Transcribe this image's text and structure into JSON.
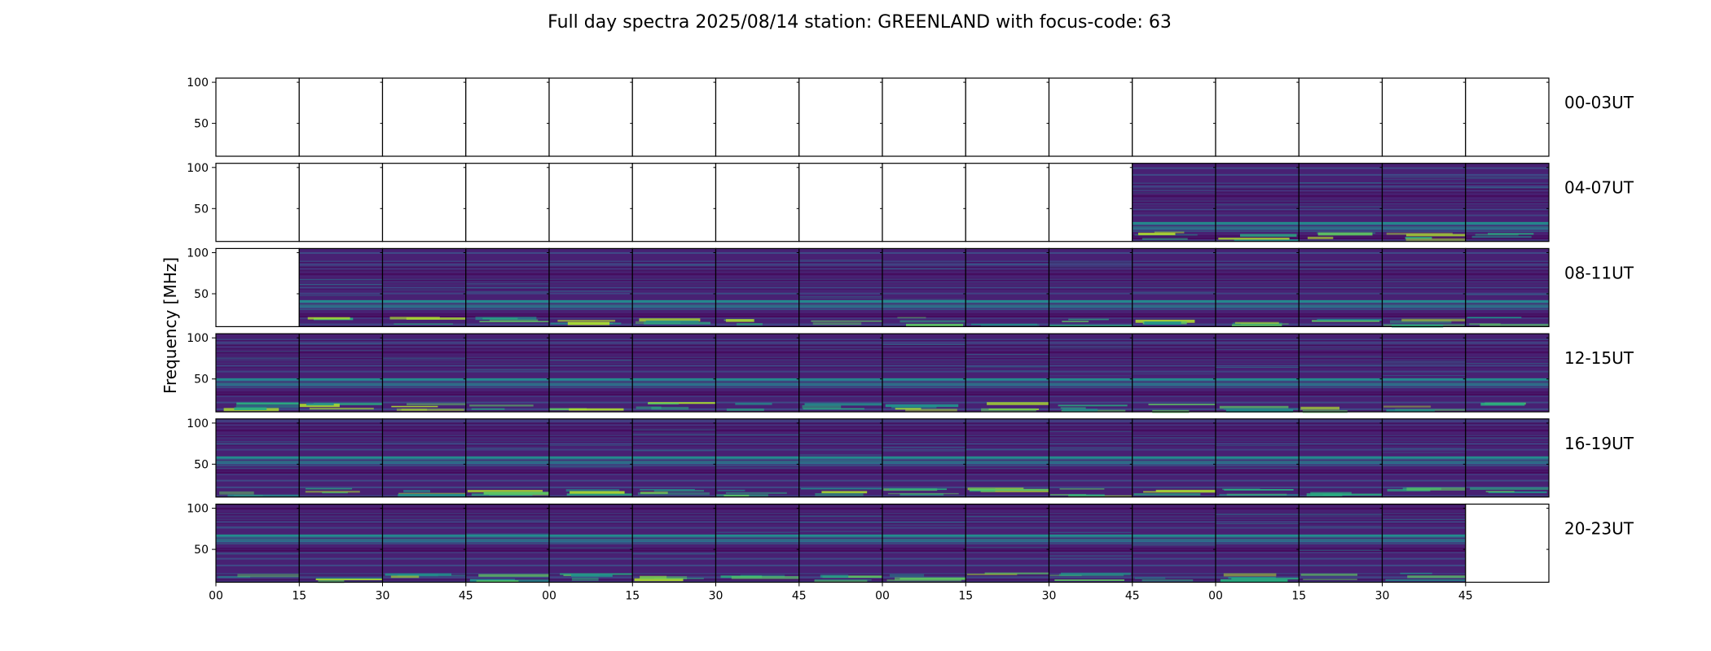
{
  "chart_data": {
    "type": "heatmap",
    "title": "Full day spectra 2025/08/14 station: GREENLAND with focus-code: 63",
    "ylabel": "Frequency [MHz]",
    "xlabel": "",
    "ylim": [
      10,
      105
    ],
    "y_ticks": [
      "100",
      "50"
    ],
    "y_tick_values": [
      100,
      50
    ],
    "x_tick_labels": [
      "00",
      "15",
      "30",
      "45",
      "00",
      "15",
      "30",
      "45",
      "00",
      "15",
      "30",
      "45",
      "00",
      "15",
      "30",
      "45"
    ],
    "x_tick_minutes": [
      0,
      15,
      30,
      45,
      60,
      75,
      90,
      105,
      120,
      135,
      150,
      165,
      180,
      195,
      210,
      225
    ],
    "x_range_minutes": [
      0,
      240
    ],
    "panel_minutes": 15,
    "colormap": [
      "#440154",
      "#482173",
      "#3b528b",
      "#2c728e",
      "#21918c",
      "#28ae80",
      "#5ec962",
      "#addc30",
      "#fde725"
    ],
    "rows": [
      {
        "label": "00-03UT",
        "has_data": [
          false,
          false,
          false,
          false,
          false,
          false,
          false,
          false,
          false,
          false,
          false,
          false,
          false,
          false,
          false,
          false
        ]
      },
      {
        "label": "04-07UT",
        "has_data": [
          false,
          false,
          false,
          false,
          false,
          false,
          false,
          false,
          false,
          false,
          false,
          true,
          true,
          true,
          true,
          true
        ]
      },
      {
        "label": "08-11UT",
        "has_data": [
          false,
          true,
          true,
          true,
          true,
          true,
          true,
          true,
          true,
          true,
          true,
          true,
          true,
          true,
          true,
          true
        ]
      },
      {
        "label": "12-15UT",
        "has_data": [
          true,
          true,
          true,
          true,
          true,
          true,
          true,
          true,
          true,
          true,
          true,
          true,
          true,
          true,
          true,
          true
        ]
      },
      {
        "label": "16-19UT",
        "has_data": [
          true,
          true,
          true,
          true,
          true,
          true,
          true,
          true,
          true,
          true,
          true,
          true,
          true,
          true,
          true,
          true
        ]
      },
      {
        "label": "20-23UT",
        "has_data": [
          true,
          true,
          true,
          true,
          true,
          true,
          true,
          true,
          true,
          true,
          true,
          true,
          true,
          true,
          true,
          false
        ]
      }
    ]
  }
}
